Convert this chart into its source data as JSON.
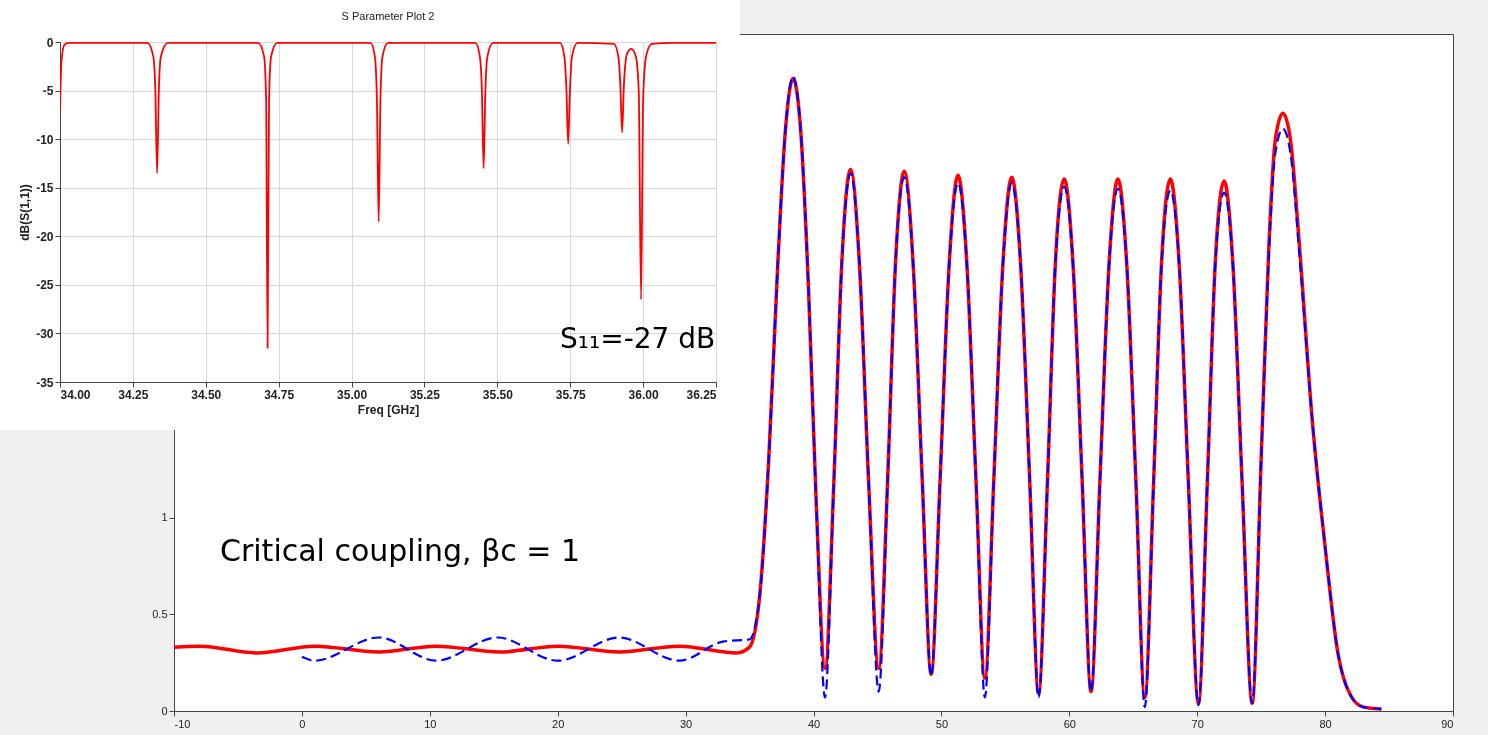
{
  "chart_data": [
    {
      "type": "line",
      "xlim": [
        -10,
        90
      ],
      "ylim": [
        0,
        3.5
      ],
      "xticks": [
        -10,
        0,
        10,
        20,
        30,
        40,
        50,
        60,
        70,
        80,
        90
      ],
      "yticks": [
        0,
        0.5,
        1
      ],
      "grid": false,
      "annotations": [
        "Critical coupling, βc = 1"
      ],
      "series": [
        {
          "color": "#ff0000",
          "line_style": "solid",
          "x": [
            -10,
            -8,
            -3.5,
            1,
            6,
            10.5,
            15.5,
            20,
            24.8,
            29.5,
            34,
            35,
            35.8,
            36.5,
            37.2,
            37.8,
            38.4,
            39.0,
            39.6,
            40.2,
            40.9,
            41.6,
            42.2,
            42.9,
            43.6,
            44.3,
            45.1,
            45.8,
            46.4,
            47.1,
            47.8,
            48.5,
            49.2,
            49.9,
            50.6,
            51.3,
            52.0,
            52.7,
            53.4,
            54.1,
            54.8,
            55.5,
            56.2,
            56.9,
            57.6,
            58.3,
            58.9,
            59.6,
            60.3,
            61.0,
            61.7,
            62.4,
            63.1,
            63.8,
            64.5,
            65.2,
            65.9,
            66.6,
            67.2,
            67.9,
            68.6,
            69.3,
            70.1,
            70.8,
            71.4,
            72.1,
            72.8,
            73.5,
            74.3,
            75.0,
            75.6,
            76.1,
            76.7,
            77.3,
            78.0,
            79.0,
            80.0,
            81.0,
            82.0,
            83.0,
            84.4
          ],
          "values": [
            0.33,
            0.335,
            0.3,
            0.335,
            0.305,
            0.335,
            0.305,
            0.335,
            0.305,
            0.335,
            0.3,
            0.33,
            0.6,
            1.3,
            2.3,
            3.0,
            3.27,
            3.0,
            2.2,
            1.1,
            0.22,
            1.2,
            2.3,
            2.8,
            2.3,
            1.2,
            0.22,
            1.2,
            2.3,
            2.79,
            2.3,
            1.2,
            0.19,
            1.2,
            2.3,
            2.77,
            2.3,
            1.2,
            0.17,
            1.2,
            2.3,
            2.76,
            2.3,
            1.2,
            0.09,
            1.2,
            2.3,
            2.75,
            2.3,
            1.2,
            0.1,
            1.2,
            2.3,
            2.75,
            2.3,
            1.2,
            0.07,
            1.2,
            2.3,
            2.75,
            2.3,
            1.2,
            0.04,
            1.2,
            2.3,
            2.74,
            2.3,
            1.2,
            0.04,
            1.3,
            2.4,
            2.95,
            3.09,
            2.95,
            2.4,
            1.5,
            0.85,
            0.3,
            0.08,
            0.02,
            0.01
          ]
        },
        {
          "color": "#0000ff",
          "line_style": "dashed",
          "x": [
            0,
            1,
            6,
            10.5,
            15.3,
            20,
            24.8,
            29.5,
            33,
            35,
            35.8,
            36.5,
            37.2,
            37.8,
            38.4,
            39.0,
            39.6,
            40.2,
            40.9,
            41.6,
            42.2,
            42.9,
            43.6,
            44.3,
            45.1,
            45.8,
            46.4,
            47.1,
            47.8,
            48.5,
            49.2,
            49.9,
            50.6,
            51.3,
            52.0,
            52.7,
            53.4,
            54.1,
            54.8,
            55.5,
            56.2,
            56.9,
            57.6,
            58.3,
            58.9,
            59.6,
            60.3,
            61.0,
            61.7,
            62.4,
            63.1,
            63.8,
            64.5,
            65.2,
            65.9,
            66.6,
            67.2,
            67.9,
            68.6,
            69.3,
            70.1,
            70.8,
            71.4,
            72.1,
            72.8,
            73.5,
            74.3,
            75.0,
            75.6,
            76.1,
            76.7,
            77.3,
            78.0,
            79.0,
            80.0,
            81.0,
            82.0,
            83.0,
            84.4
          ],
          "values": [
            0.28,
            0.26,
            0.38,
            0.26,
            0.38,
            0.26,
            0.38,
            0.26,
            0.36,
            0.37,
            0.6,
            1.3,
            2.3,
            3.0,
            3.28,
            3.0,
            2.2,
            1.1,
            0.07,
            1.2,
            2.3,
            2.78,
            2.3,
            1.2,
            0.1,
            1.2,
            2.3,
            2.76,
            2.3,
            1.2,
            0.18,
            1.2,
            2.3,
            2.73,
            2.3,
            1.2,
            0.07,
            1.2,
            2.3,
            2.73,
            2.3,
            1.2,
            0.07,
            1.2,
            2.3,
            2.71,
            2.3,
            1.2,
            0.1,
            1.2,
            2.3,
            2.7,
            2.3,
            1.2,
            0.02,
            1.2,
            2.3,
            2.69,
            2.3,
            1.2,
            0.03,
            1.2,
            2.3,
            2.68,
            2.3,
            1.2,
            0.04,
            1.3,
            2.35,
            2.88,
            3.01,
            2.88,
            2.35,
            1.5,
            0.85,
            0.3,
            0.08,
            0.02,
            0.01
          ]
        }
      ]
    },
    {
      "type": "line",
      "title": "S Parameter Plot 2",
      "xlabel": "Freq [GHz]",
      "ylabel": "dB(S(1,1))",
      "xlim": [
        34,
        36.25
      ],
      "ylim": [
        -35,
        0
      ],
      "xticks": [
        {
          "value": 34,
          "label": "34.00"
        },
        {
          "value": 34.25,
          "label": "34.25"
        },
        {
          "value": 34.5,
          "label": "34.50"
        },
        {
          "value": 34.75,
          "label": "34.75"
        },
        {
          "value": 35,
          "label": "35.00"
        },
        {
          "value": 35.25,
          "label": "35.25"
        },
        {
          "value": 35.5,
          "label": "35.50"
        },
        {
          "value": 35.75,
          "label": "35.75"
        },
        {
          "value": 36,
          "label": "36.00"
        },
        {
          "value": 36.25,
          "label": "36.25"
        }
      ],
      "yticks": [
        -35,
        -30,
        -25,
        -20,
        -15,
        -10,
        -5,
        0
      ],
      "grid": true,
      "annotations": [
        "S₁₁=-27 dB"
      ],
      "series": [
        {
          "color": "#ff0000",
          "line_style": "solid",
          "x": [
            34.0,
            34.005,
            34.015,
            34.03,
            34.3,
            34.32,
            34.327,
            34.333,
            34.339,
            34.346,
            34.37,
            34.68,
            34.7,
            34.707,
            34.712,
            34.717,
            34.724,
            34.745,
            35.065,
            35.08,
            35.087,
            35.093,
            35.099,
            35.106,
            35.125,
            35.425,
            35.44,
            35.447,
            35.453,
            35.459,
            35.466,
            35.485,
            35.715,
            35.73,
            35.737,
            35.743,
            35.749,
            35.756,
            35.775,
            35.9,
            35.915,
            35.922,
            35.928,
            35.934,
            35.945,
            35.96,
            35.975,
            35.985,
            35.993,
            36.0,
            36.01,
            36.03,
            36.1,
            36.25
          ],
          "values": [
            -7,
            -2,
            -0.3,
            -0.1,
            -0.1,
            -1.5,
            -5,
            -13.5,
            -5,
            -1.5,
            -0.1,
            -0.1,
            -1.5,
            -6,
            -31.5,
            -6,
            -1.5,
            -0.1,
            -0.1,
            -1.5,
            -6,
            -18.5,
            -6,
            -1.5,
            -0.1,
            -0.1,
            -1.5,
            -5,
            -13,
            -5,
            -1.5,
            -0.1,
            -0.1,
            -1.5,
            -5,
            -10.5,
            -5,
            -1.5,
            -0.1,
            -0.2,
            -1.5,
            -4.5,
            -9.3,
            -4.5,
            -1.2,
            -0.7,
            -1.5,
            -5,
            -26.5,
            -6,
            -1.5,
            -0.2,
            -0.1,
            -0.1
          ]
        }
      ]
    }
  ]
}
